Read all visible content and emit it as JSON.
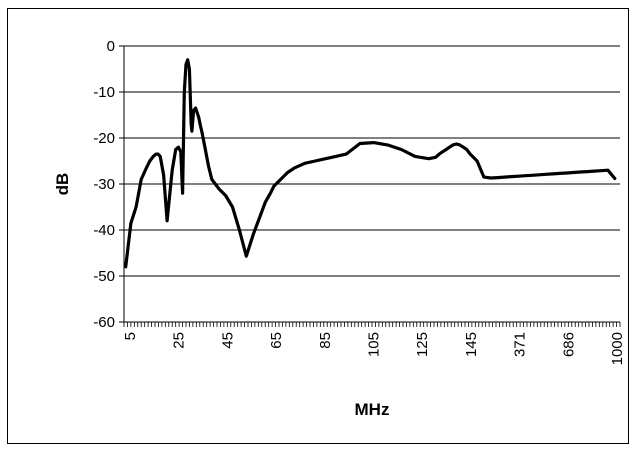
{
  "chart_data": {
    "type": "line",
    "title": "",
    "xlabel": "MHz",
    "ylabel": "dB",
    "ylim": [
      -60,
      0
    ],
    "yticks": [
      0,
      -10,
      -20,
      -30,
      -40,
      -50,
      -60
    ],
    "ytick_labels": [
      "0",
      "-10",
      "-20",
      "-30",
      "-40",
      "-50",
      "-60"
    ],
    "xtick_labels": [
      "5",
      "25",
      "45",
      "65",
      "85",
      "105",
      "125",
      "145",
      "371",
      "686",
      "1000"
    ],
    "grid": "horizontal",
    "legend": "none",
    "line_color": "#000000",
    "x_category_index": [
      0,
      1.5,
      3,
      4.5,
      6,
      7,
      8,
      8.8,
      9.4,
      10,
      11,
      12,
      13.5,
      14.5,
      15.3,
      16,
      16.5,
      17,
      17.5,
      18,
      18.5,
      19,
      19.2,
      19.7,
      20.3,
      21.2,
      21.6,
      22.2,
      23,
      24,
      25,
      26,
      27,
      29,
      31,
      33,
      35,
      37,
      39,
      40.5,
      42,
      43,
      45,
      47,
      49,
      52,
      55,
      58,
      61,
      64,
      68,
      72,
      76,
      80,
      84,
      88,
      90,
      91,
      92,
      93,
      94,
      95,
      96,
      97,
      98,
      99,
      100,
      102,
      104,
      106,
      108,
      110,
      112,
      114,
      116,
      118,
      120,
      122,
      124,
      126,
      128,
      130,
      132,
      134,
      136,
      138,
      140,
      142,
      144
    ],
    "values": [
      -48,
      -38.5,
      -35,
      -29,
      -26.5,
      -25,
      -24,
      -23.5,
      -23.5,
      -24,
      -28,
      -38,
      -27,
      -22.5,
      -22,
      -23,
      -32,
      -10,
      -4,
      -3,
      -5,
      -17,
      -18.5,
      -14,
      -13.5,
      -15.5,
      -17,
      -19,
      -22,
      -26,
      -29,
      -30,
      -31,
      -32.5,
      -35,
      -40,
      -45.7,
      -41,
      -37,
      -34,
      -32,
      -30.5,
      -29,
      -27.5,
      -26.5,
      -25.5,
      -25,
      -24.5,
      -24,
      -23.5,
      -21.2,
      -21,
      -21.5,
      -22.5,
      -24,
      -24.5,
      -24.2,
      -23.5,
      -23,
      -22.5,
      -22,
      -21.5,
      -21.3,
      -21.5,
      -22,
      -22.5,
      -23.5,
      -25,
      -28.5,
      -28.7,
      -28.6,
      -28.5,
      -28.4,
      -28.3,
      -28.2,
      -28.1,
      -28,
      -27.9,
      -27.8,
      -27.7,
      -27.6,
      -27.5,
      -27.4,
      -27.3,
      -27.2,
      -27.1,
      -27,
      -28.8
    ],
    "x_category_count": 144
  }
}
